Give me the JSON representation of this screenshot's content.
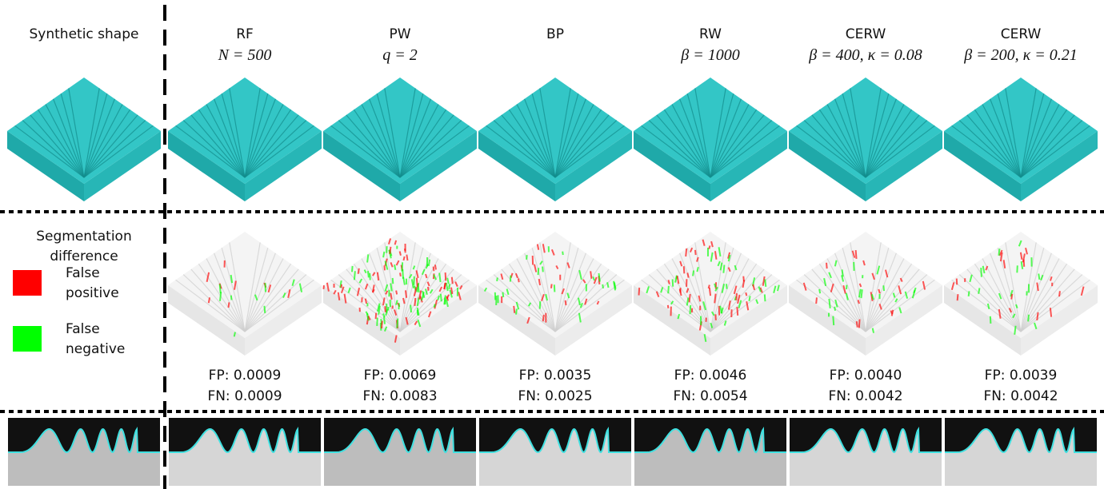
{
  "row_label": "Synthetic shape",
  "legend": {
    "title": "Segmentation difference",
    "items": [
      {
        "label": "False positive",
        "color": "#ff0000"
      },
      {
        "label": "False negative",
        "color": "#00ff00"
      }
    ]
  },
  "methods": [
    {
      "name": "RF",
      "params": "N = 500",
      "fp": "FP: 0.0009",
      "fn": "FN: 0.0009"
    },
    {
      "name": "PW",
      "params": "q = 2",
      "fp": "FP: 0.0069",
      "fn": "FN: 0.0083"
    },
    {
      "name": "BP",
      "fp": "FP: 0.0035",
      "fn": "FN: 0.0025"
    },
    {
      "name": "RW",
      "params": "β = 1000",
      "fp": "FP: 0.0046",
      "fn": "FN: 0.0054"
    },
    {
      "name": "CERW",
      "params": "β = 400, κ = 0.08",
      "fp": "FP: 0.0040",
      "fn": "FN: 0.0042"
    },
    {
      "name": "CERW",
      "params": "β = 200, κ = 0.21",
      "fp": "FP: 0.0039",
      "fn": "FN: 0.0042"
    }
  ]
}
